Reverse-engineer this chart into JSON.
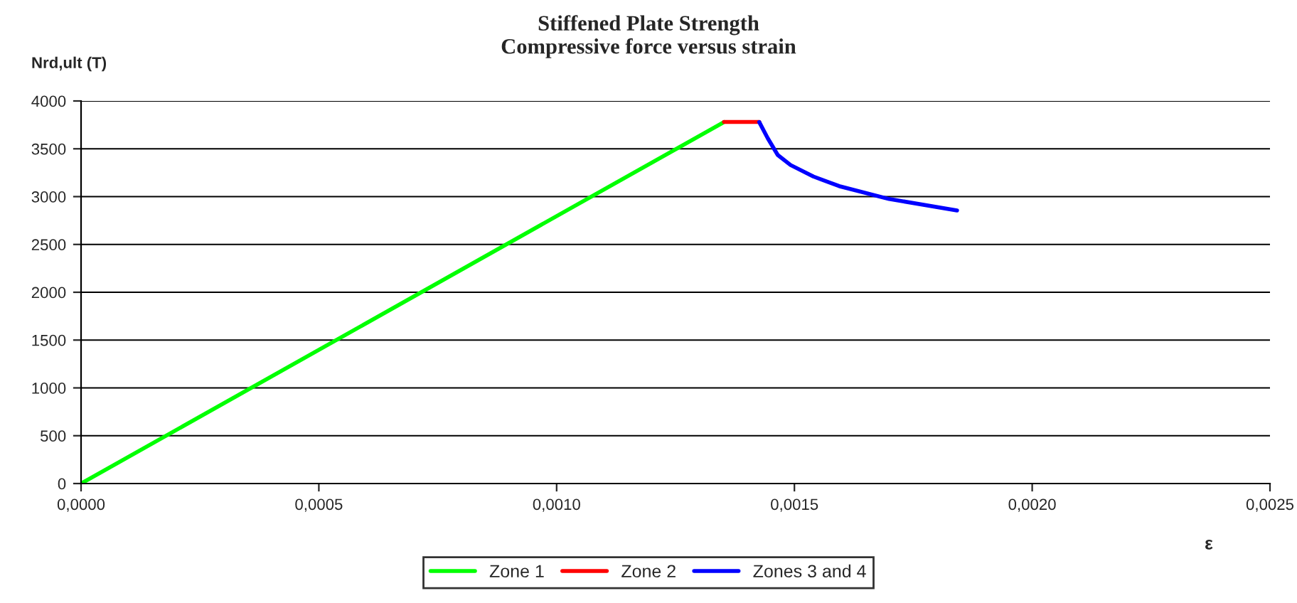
{
  "chart_data": {
    "type": "line",
    "title": "Stiffened Plate Strength\nCompressive force versus strain",
    "xlabel": "ε",
    "ylabel": "Nrd,ult (T)",
    "series": [
      {
        "name": "Zone 1",
        "color": "#00ff00",
        "x": [
          0,
          0.001352
        ],
        "values": [
          0,
          3780
        ]
      },
      {
        "name": "Zone 2",
        "color": "#ff0000",
        "x": [
          0.001352,
          0.001426
        ],
        "values": [
          3780,
          3780
        ]
      },
      {
        "name": "Zones 3 and 4",
        "color": "#0000ff",
        "x": [
          0.001426,
          0.001444,
          0.001465,
          0.001492,
          0.00154,
          0.001594,
          0.001699,
          0.001842
        ],
        "values": [
          3780,
          3610,
          3435,
          3330,
          3210,
          3110,
          2975,
          2855
        ]
      }
    ],
    "xlim": [
      0,
      0.0025
    ],
    "xticks": [
      {
        "value": 0,
        "label": "0,0000"
      },
      {
        "value": 0.0005,
        "label": "0,0005"
      },
      {
        "value": 0.001,
        "label": "0,0010"
      },
      {
        "value": 0.0015,
        "label": "0,0015"
      },
      {
        "value": 0.002,
        "label": "0,0020"
      },
      {
        "value": 0.0025,
        "label": "0,0025"
      }
    ],
    "ylim": [
      0,
      4000
    ],
    "yticks": [
      0,
      500,
      1000,
      1500,
      2000,
      2500,
      3000,
      3500,
      4000
    ],
    "grid": "y",
    "legend": "bottom",
    "marker": "none",
    "line_style": "solid"
  }
}
